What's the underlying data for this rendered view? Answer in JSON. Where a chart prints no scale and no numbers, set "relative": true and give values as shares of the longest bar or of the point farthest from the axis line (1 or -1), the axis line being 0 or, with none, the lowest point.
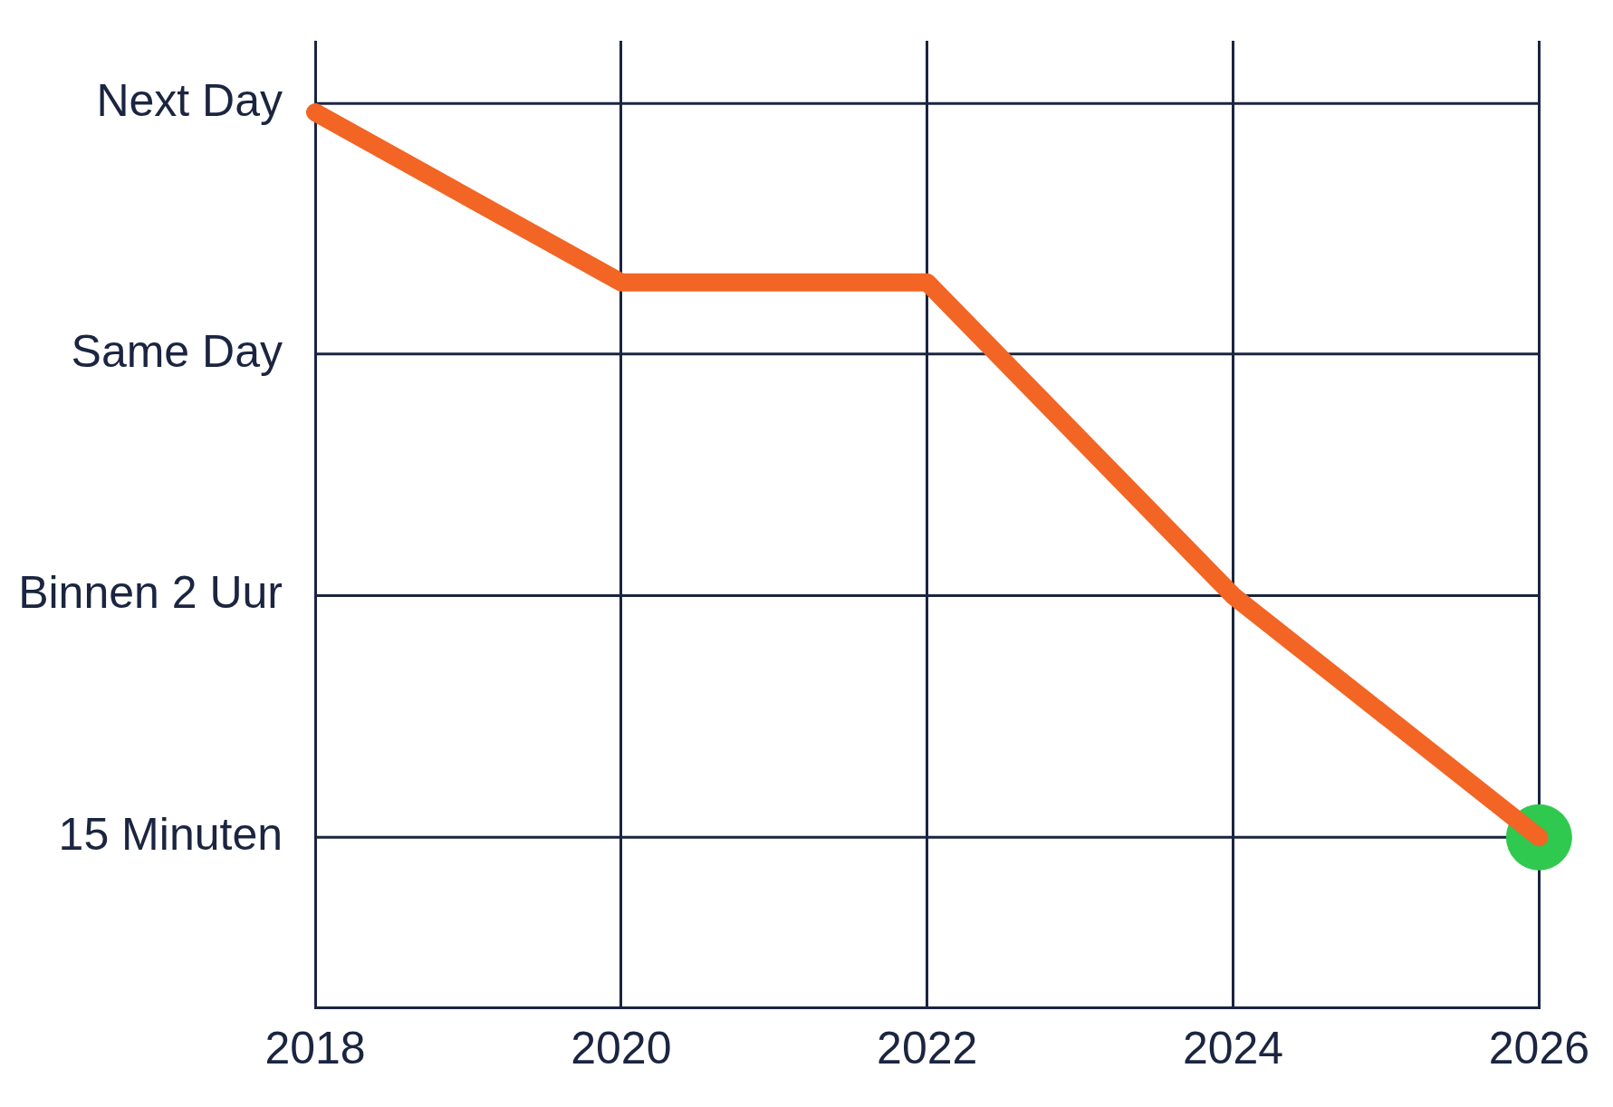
{
  "chart_data": {
    "type": "line",
    "relative": true,
    "xlim": [
      2018,
      2026
    ],
    "xticks": [
      2018,
      2020,
      2022,
      2024,
      2026
    ],
    "grid": "x",
    "legend": false,
    "marker": "none",
    "line_style": "solid",
    "ref_lines": [
      {
        "axis": "y",
        "value": 0.19,
        "label": "15 Minuten",
        "color": "#1b2540"
      },
      {
        "axis": "y",
        "value": 0.46,
        "label": "Binnen 2 Uur",
        "color": "#1b2540"
      },
      {
        "axis": "y",
        "value": 0.73,
        "label": "Same Day",
        "color": "#1b2540"
      },
      {
        "axis": "y",
        "value": 1.01,
        "label": "Next Day",
        "color": "#1b2540"
      }
    ],
    "series": [
      {
        "color": "#f26524",
        "x": [
          2018,
          2020,
          2022,
          2024,
          2026
        ],
        "values": [
          1,
          0.81,
          0.81,
          0.46,
          0.19
        ]
      },
      {
        "type": "scatter",
        "color": "#2fc94f",
        "marker": "circle",
        "x": [
          2026
        ],
        "values": [
          0.19
        ]
      }
    ]
  }
}
